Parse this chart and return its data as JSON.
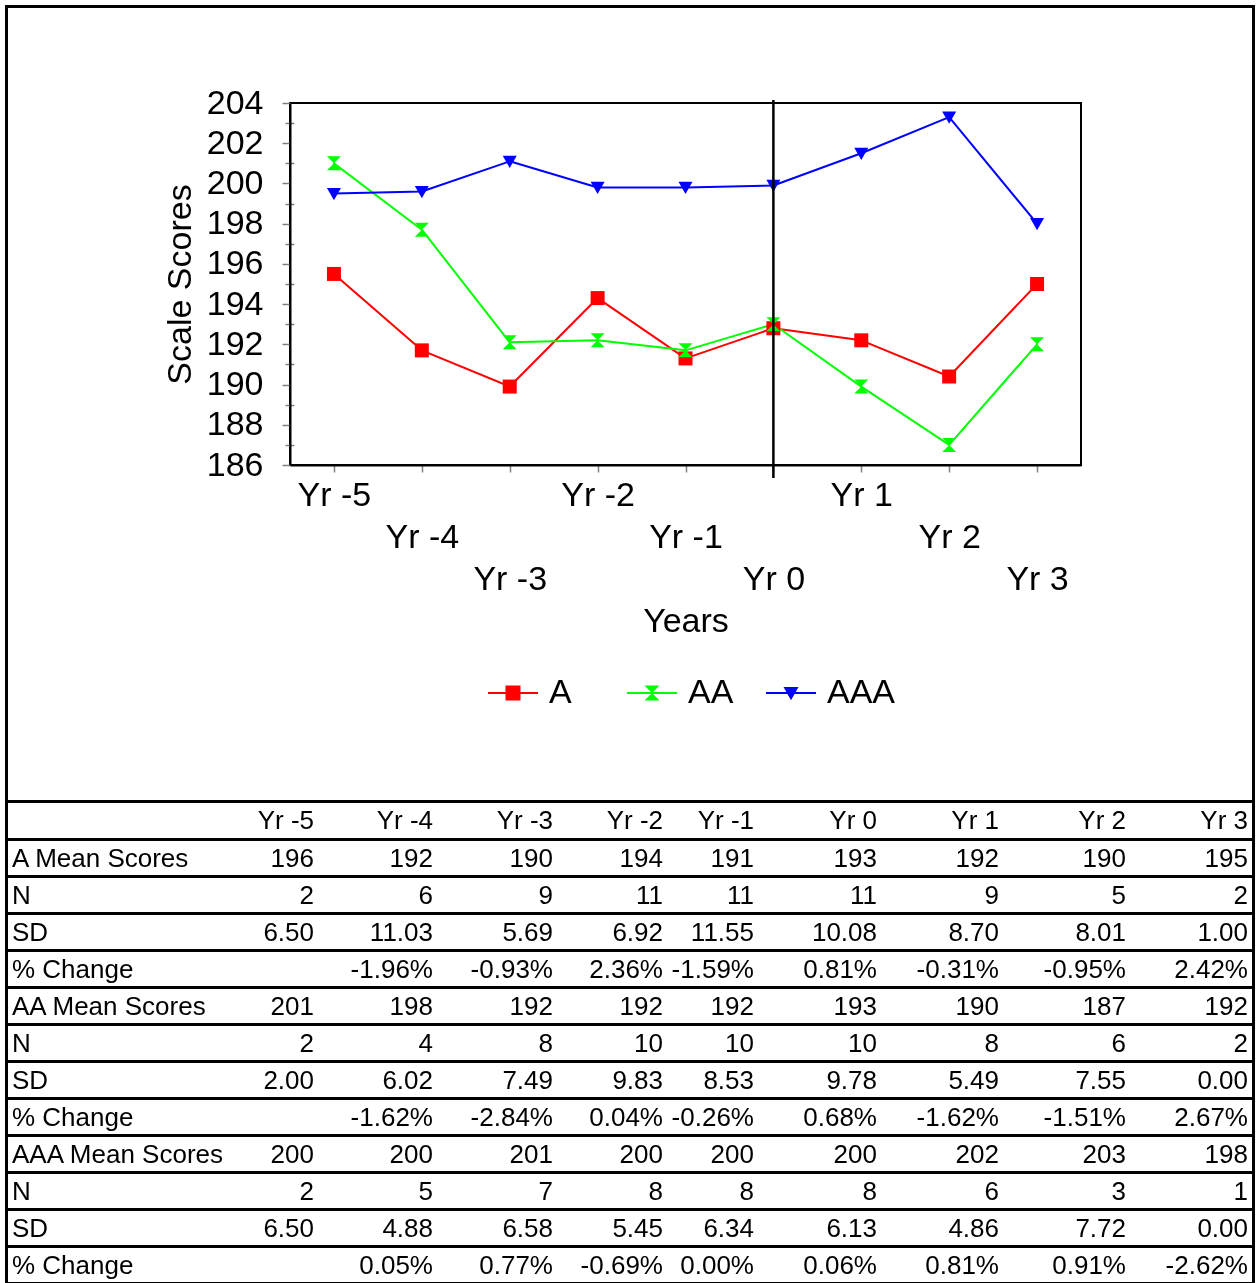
{
  "chart_data": [
    {
      "type": "line",
      "xlabel": "Years",
      "ylabel": "Scale Scores",
      "categories": [
        "Yr -5",
        "Yr -4",
        "Yr -3",
        "Yr -2",
        "Yr -1",
        "Yr 0",
        "Yr 1",
        "Yr 2",
        "Yr 3"
      ],
      "series": [
        {
          "name": "A",
          "color": "#ff0000",
          "marker": "square",
          "values": [
            195.5,
            191.7,
            189.9,
            194.3,
            191.3,
            192.8,
            192.2,
            190.4,
            195.0
          ]
        },
        {
          "name": "AA",
          "color": "#00ff00",
          "marker": "cross",
          "values": [
            201.0,
            197.7,
            192.1,
            192.2,
            191.7,
            193.0,
            189.9,
            187.0,
            192.0
          ]
        },
        {
          "name": "AAA",
          "color": "#0000ff",
          "marker": "triangle",
          "values": [
            199.5,
            199.6,
            201.1,
            199.8,
            199.8,
            199.9,
            201.5,
            203.3,
            198.0
          ]
        }
      ],
      "ylim": [
        186,
        204
      ],
      "yticks": [
        186,
        {
          "value": 187,
          "label": null
        },
        188,
        {
          "value": 189,
          "label": null
        },
        190,
        {
          "value": 191,
          "label": null
        },
        192,
        {
          "value": 193,
          "label": null
        },
        194,
        {
          "value": 195,
          "label": null
        },
        196,
        {
          "value": 197,
          "label": null
        },
        198,
        {
          "value": 199,
          "label": null
        },
        200,
        {
          "value": 201,
          "label": null
        },
        202,
        {
          "value": 203,
          "label": null
        },
        204
      ],
      "ref_lines": [
        {
          "axis": "x",
          "value": "Yr 0",
          "color": "#000000"
        }
      ],
      "legend": "bottom",
      "line_style": "solid"
    },
    {
      "type": "heatmap",
      "categories": [
        "Yr -5",
        "Yr -4",
        "Yr -3",
        "Yr -2",
        "Yr -1",
        "Yr 0",
        "Yr 1",
        "Yr 2",
        "Yr 3"
      ],
      "y_categories": [
        "A Mean Scores",
        "N",
        "SD",
        "% Change",
        "AA Mean Scores",
        "N",
        "SD",
        "% Change",
        "AAA Mean Scores",
        "N",
        "SD",
        "% Change"
      ],
      "cells": [
        [
          196,
          192,
          190,
          194,
          191,
          193,
          192,
          190,
          195
        ],
        [
          2,
          6,
          9,
          11,
          11,
          11,
          9,
          5,
          2
        ],
        [
          6.5,
          11.03,
          5.69,
          6.92,
          11.55,
          10.08,
          8.7,
          8.01,
          1
        ],
        [
          null,
          -1.96,
          -0.93,
          2.36,
          -1.59,
          0.81,
          -0.31,
          -0.95,
          2.42
        ],
        [
          201,
          198,
          192,
          192,
          192,
          193,
          190,
          187,
          192
        ],
        [
          2,
          4,
          8,
          10,
          10,
          10,
          8,
          6,
          2
        ],
        [
          2,
          6.02,
          7.49,
          9.83,
          8.53,
          9.78,
          5.49,
          7.55,
          0
        ],
        [
          null,
          -1.62,
          -2.84,
          0.04,
          -0.26,
          0.68,
          -1.62,
          -1.51,
          2.67
        ],
        [
          200,
          200,
          201,
          200,
          200,
          200,
          202,
          203,
          198
        ],
        [
          2,
          5,
          7,
          8,
          8,
          8,
          6,
          3,
          1
        ],
        [
          6.5,
          4.88,
          6.58,
          5.45,
          6.34,
          6.13,
          4.86,
          7.72,
          0
        ],
        [
          null,
          0.05,
          0.77,
          -0.69,
          0,
          0.06,
          0.81,
          0.91,
          -2.62
        ]
      ],
      "cell_labels": [
        [
          "196",
          "192",
          "190",
          "194",
          "191",
          "193",
          "192",
          "190",
          "195"
        ],
        [
          "2",
          "6",
          "9",
          "11",
          "11",
          "11",
          "9",
          "5",
          "2"
        ],
        [
          "6.50",
          "11.03",
          "5.69",
          "6.92",
          "11.55",
          "10.08",
          "8.70",
          "8.01",
          "1.00"
        ],
        [
          null,
          "-1.96%",
          "-0.93%",
          "2.36%",
          "-1.59%",
          "0.81%",
          "-0.31%",
          "-0.95%",
          "2.42%"
        ],
        [
          "201",
          "198",
          "192",
          "192",
          "192",
          "193",
          "190",
          "187",
          "192"
        ],
        [
          "2",
          "4",
          "8",
          "10",
          "10",
          "10",
          "8",
          "6",
          "2"
        ],
        [
          "2.00",
          "6.02",
          "7.49",
          "9.83",
          "8.53",
          "9.78",
          "5.49",
          "7.55",
          "0.00"
        ],
        [
          null,
          "-1.62%",
          "-2.84%",
          "0.04%",
          "-0.26%",
          "0.68%",
          "-1.62%",
          "-1.51%",
          "2.67%"
        ],
        [
          "200",
          "200",
          "201",
          "200",
          "200",
          "200",
          "202",
          "203",
          "198"
        ],
        [
          "2",
          "5",
          "7",
          "8",
          "8",
          "8",
          "6",
          "3",
          "1"
        ],
        [
          "6.50",
          "4.88",
          "6.58",
          "5.45",
          "6.34",
          "6.13",
          "4.86",
          "7.72",
          "0.00"
        ],
        [
          null,
          "0.05%",
          "0.77%",
          "-0.69%",
          "0.00%",
          "0.06%",
          "0.81%",
          "0.91%",
          "-2.62%"
        ]
      ]
    }
  ]
}
